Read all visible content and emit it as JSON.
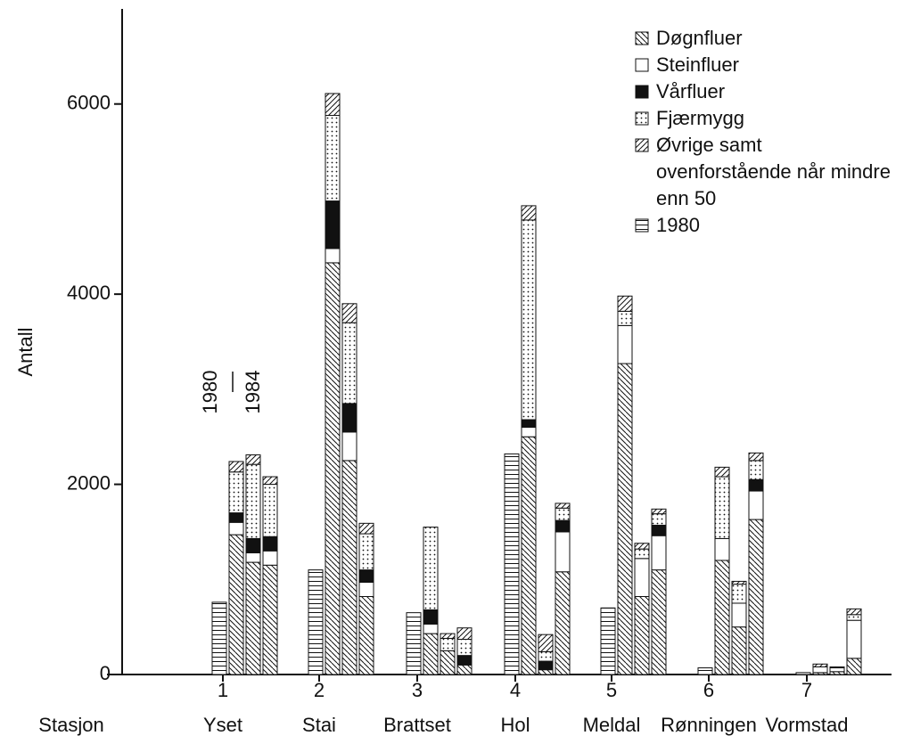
{
  "chart_data": {
    "type": "bar",
    "stacked": true,
    "y_label": "Antall",
    "x_label": "Stasjon",
    "station_numbers": [
      "1",
      "2",
      "3",
      "4",
      "5",
      "6",
      "7"
    ],
    "categories": [
      "Yset",
      "Stai",
      "Brattset",
      "Hol",
      "Meldal",
      "Rønningen",
      "Vormstad"
    ],
    "annotation": [
      "1980",
      "1984"
    ],
    "ylim": [
      0,
      7000
    ],
    "yticks": [
      0,
      2000,
      4000,
      6000
    ],
    "legend": "top-right",
    "series": [
      {
        "name": "Døgnfluer",
        "pattern": "backslash-hatch",
        "color": "#000000",
        "values": [
          [
            1470,
            1180,
            1150
          ],
          [
            4330,
            2250,
            820
          ],
          [
            430,
            250,
            100
          ],
          [
            2500,
            50,
            1080
          ],
          [
            3270,
            820,
            1100
          ],
          [
            1200,
            500,
            1630
          ],
          [
            20,
            30,
            170
          ]
        ]
      },
      {
        "name": "Steinfluer",
        "pattern": "solid",
        "color": "#ffffff",
        "values": [
          [
            130,
            100,
            150
          ],
          [
            150,
            300,
            150
          ],
          [
            100,
            0,
            0
          ],
          [
            100,
            0,
            420
          ],
          [
            400,
            400,
            360
          ],
          [
            230,
            250,
            300
          ],
          [
            60,
            40,
            400
          ]
        ]
      },
      {
        "name": "Vårfluer",
        "pattern": "solid",
        "color": "#111111",
        "values": [
          [
            100,
            150,
            150
          ],
          [
            500,
            300,
            130
          ],
          [
            150,
            0,
            100
          ],
          [
            80,
            90,
            120
          ],
          [
            0,
            0,
            110
          ],
          [
            0,
            0,
            120
          ],
          [
            0,
            0,
            0
          ]
        ]
      },
      {
        "name": "Fjærmygg",
        "pattern": "dots",
        "color": "#000000",
        "values": [
          [
            430,
            780,
            550
          ],
          [
            900,
            850,
            380
          ],
          [
            870,
            130,
            170
          ],
          [
            2100,
            100,
            130
          ],
          [
            150,
            100,
            120
          ],
          [
            650,
            200,
            200
          ],
          [
            0,
            0,
            60
          ]
        ]
      },
      {
        "name": "Øvrige samt ovenforstående når mindre enn 50",
        "pattern": "slash-hatch",
        "color": "#000000",
        "values": [
          [
            110,
            100,
            80
          ],
          [
            230,
            200,
            110
          ],
          [
            0,
            50,
            120
          ],
          [
            150,
            180,
            50
          ],
          [
            160,
            60,
            50
          ],
          [
            100,
            30,
            80
          ],
          [
            30,
            10,
            60
          ]
        ]
      },
      {
        "name": "1980",
        "pattern": "horizontal-lines",
        "color": "#000000",
        "values": [
          760,
          1100,
          650,
          2320,
          700,
          70,
          20
        ]
      }
    ]
  }
}
